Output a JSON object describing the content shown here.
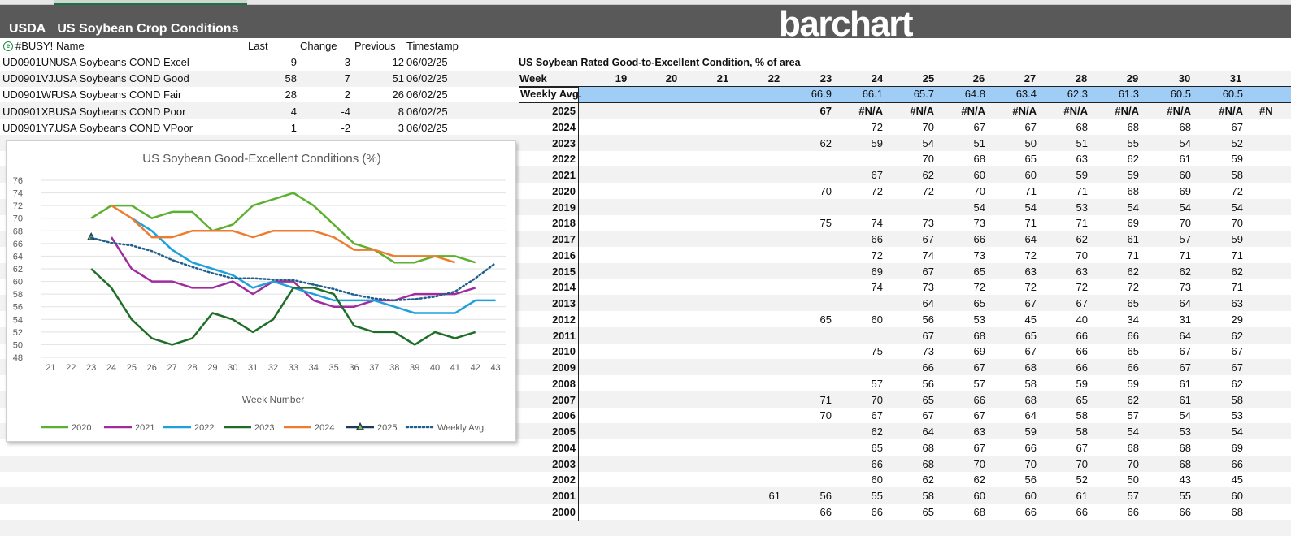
{
  "header": {
    "left_label": "USDA",
    "title": "US Soybean Crop Conditions",
    "logo_text": "barchart"
  },
  "quotes": {
    "status": "#BUSY!",
    "columns": [
      "Name",
      "Last",
      "Change",
      "Previous",
      "Timestamp"
    ],
    "rows": [
      {
        "symbol": "UD0901UN",
        "name": "USA Soybeans COND Excel",
        "last": "9",
        "change": "-3",
        "previous": "12",
        "timestamp": "06/02/25"
      },
      {
        "symbol": "UD0901VJ.",
        "name": "USA Soybeans COND Good",
        "last": "58",
        "change": "7",
        "previous": "51",
        "timestamp": "06/02/25"
      },
      {
        "symbol": "UD0901WF",
        "name": "USA Soybeans COND Fair",
        "last": "28",
        "change": "2",
        "previous": "26",
        "timestamp": "06/02/25"
      },
      {
        "symbol": "UD0901XB",
        "name": "USA Soybeans COND Poor",
        "last": "4",
        "change": "-4",
        "previous": "8",
        "timestamp": "06/02/25"
      },
      {
        "symbol": "UD0901Y7.",
        "name": "USA Soybeans COND VPoor",
        "last": "1",
        "change": "-2",
        "previous": "3",
        "timestamp": "06/02/25"
      }
    ]
  },
  "table": {
    "title": "US Soybean Rated Good-to-Excellent Condition, % of area",
    "week_label": "Week",
    "weeks": [
      "19",
      "20",
      "21",
      "22",
      "23",
      "24",
      "25",
      "26",
      "27",
      "28",
      "29",
      "30",
      "31"
    ],
    "avg_label": "Weekly Avg.",
    "avg": [
      "",
      "",
      "",
      "",
      "66.9",
      "66.1",
      "65.7",
      "64.8",
      "63.4",
      "62.3",
      "61.3",
      "60.5",
      "60.5"
    ],
    "overflow_text": "#N",
    "rows": [
      {
        "year": "2025",
        "values": [
          "",
          "",
          "",
          "",
          "67",
          "#N/A",
          "#N/A",
          "#N/A",
          "#N/A",
          "#N/A",
          "#N/A",
          "#N/A",
          "#N/A"
        ]
      },
      {
        "year": "2024",
        "values": [
          "",
          "",
          "",
          "",
          "",
          "72",
          "70",
          "67",
          "67",
          "68",
          "68",
          "68",
          "67"
        ]
      },
      {
        "year": "2023",
        "values": [
          "",
          "",
          "",
          "",
          "62",
          "59",
          "54",
          "51",
          "50",
          "51",
          "55",
          "54",
          "52"
        ]
      },
      {
        "year": "2022",
        "values": [
          "",
          "",
          "",
          "",
          "",
          "",
          "70",
          "68",
          "65",
          "63",
          "62",
          "61",
          "59"
        ]
      },
      {
        "year": "2021",
        "values": [
          "",
          "",
          "",
          "",
          "",
          "67",
          "62",
          "60",
          "60",
          "59",
          "59",
          "60",
          "58"
        ]
      },
      {
        "year": "2020",
        "values": [
          "",
          "",
          "",
          "",
          "70",
          "72",
          "72",
          "70",
          "71",
          "71",
          "68",
          "69",
          "72"
        ]
      },
      {
        "year": "2019",
        "values": [
          "",
          "",
          "",
          "",
          "",
          "",
          "",
          "54",
          "54",
          "53",
          "54",
          "54",
          "54"
        ]
      },
      {
        "year": "2018",
        "values": [
          "",
          "",
          "",
          "",
          "75",
          "74",
          "73",
          "73",
          "71",
          "71",
          "69",
          "70",
          "70"
        ]
      },
      {
        "year": "2017",
        "values": [
          "",
          "",
          "",
          "",
          "",
          "66",
          "67",
          "66",
          "64",
          "62",
          "61",
          "57",
          "59"
        ]
      },
      {
        "year": "2016",
        "values": [
          "",
          "",
          "",
          "",
          "",
          "72",
          "74",
          "73",
          "72",
          "70",
          "71",
          "71",
          "71"
        ]
      },
      {
        "year": "2015",
        "values": [
          "",
          "",
          "",
          "",
          "",
          "69",
          "67",
          "65",
          "63",
          "63",
          "62",
          "62",
          "62"
        ]
      },
      {
        "year": "2014",
        "values": [
          "",
          "",
          "",
          "",
          "",
          "74",
          "73",
          "72",
          "72",
          "72",
          "72",
          "73",
          "71"
        ]
      },
      {
        "year": "2013",
        "values": [
          "",
          "",
          "",
          "",
          "",
          "",
          "64",
          "65",
          "67",
          "67",
          "65",
          "64",
          "63"
        ]
      },
      {
        "year": "2012",
        "values": [
          "",
          "",
          "",
          "",
          "65",
          "60",
          "56",
          "53",
          "45",
          "40",
          "34",
          "31",
          "29"
        ]
      },
      {
        "year": "2011",
        "values": [
          "",
          "",
          "",
          "",
          "",
          "",
          "67",
          "68",
          "65",
          "66",
          "66",
          "64",
          "62"
        ]
      },
      {
        "year": "2010",
        "values": [
          "",
          "",
          "",
          "",
          "",
          "75",
          "73",
          "69",
          "67",
          "66",
          "65",
          "67",
          "67"
        ]
      },
      {
        "year": "2009",
        "values": [
          "",
          "",
          "",
          "",
          "",
          "",
          "66",
          "67",
          "68",
          "66",
          "66",
          "67",
          "67"
        ]
      },
      {
        "year": "2008",
        "values": [
          "",
          "",
          "",
          "",
          "",
          "57",
          "56",
          "57",
          "58",
          "59",
          "59",
          "61",
          "62"
        ]
      },
      {
        "year": "2007",
        "values": [
          "",
          "",
          "",
          "",
          "71",
          "70",
          "65",
          "66",
          "68",
          "65",
          "62",
          "61",
          "58"
        ]
      },
      {
        "year": "2006",
        "values": [
          "",
          "",
          "",
          "",
          "70",
          "67",
          "67",
          "67",
          "64",
          "58",
          "57",
          "54",
          "53"
        ]
      },
      {
        "year": "2005",
        "values": [
          "",
          "",
          "",
          "",
          "",
          "62",
          "64",
          "63",
          "59",
          "58",
          "54",
          "53",
          "54"
        ]
      },
      {
        "year": "2004",
        "values": [
          "",
          "",
          "",
          "",
          "",
          "65",
          "68",
          "67",
          "66",
          "67",
          "68",
          "68",
          "69"
        ]
      },
      {
        "year": "2003",
        "values": [
          "",
          "",
          "",
          "",
          "",
          "66",
          "68",
          "70",
          "70",
          "70",
          "70",
          "68",
          "66"
        ]
      },
      {
        "year": "2002",
        "values": [
          "",
          "",
          "",
          "",
          "",
          "60",
          "62",
          "62",
          "56",
          "52",
          "50",
          "43",
          "45"
        ]
      },
      {
        "year": "2001",
        "values": [
          "",
          "",
          "",
          "61",
          "56",
          "55",
          "58",
          "60",
          "60",
          "61",
          "57",
          "55",
          "60"
        ]
      },
      {
        "year": "2000",
        "values": [
          "",
          "",
          "",
          "",
          "66",
          "66",
          "65",
          "68",
          "66",
          "66",
          "66",
          "66",
          "68"
        ]
      }
    ]
  },
  "chart_data": {
    "type": "line",
    "title": "US Soybean Good-Excellent Conditions (%)",
    "xlabel": "Week Number",
    "ylabel": "",
    "x_ticks": [
      "21",
      "22",
      "23",
      "24",
      "25",
      "26",
      "27",
      "28",
      "29",
      "30",
      "31",
      "32",
      "33",
      "34",
      "35",
      "36",
      "37",
      "38",
      "39",
      "40",
      "41",
      "42",
      "43"
    ],
    "xlim": [
      21,
      43
    ],
    "ylim": [
      48,
      76
    ],
    "y_ticks": [
      "48",
      "50",
      "52",
      "54",
      "56",
      "58",
      "60",
      "62",
      "64",
      "66",
      "68",
      "70",
      "72",
      "74",
      "76"
    ],
    "legend_position": "bottom",
    "grid": true,
    "series": [
      {
        "name": "2020",
        "color": "#5cb030",
        "style": "solid",
        "x": [
          23,
          24,
          25,
          26,
          27,
          28,
          29,
          30,
          31,
          32,
          33,
          34,
          35,
          36,
          37,
          38,
          39,
          40,
          41,
          42
        ],
        "y": [
          70,
          72,
          72,
          70,
          71,
          71,
          68,
          69,
          72,
          73,
          74,
          72,
          69,
          66,
          65,
          63,
          63,
          64,
          64,
          63
        ]
      },
      {
        "name": "2021",
        "color": "#a02aa0",
        "style": "solid",
        "x": [
          24,
          25,
          26,
          27,
          28,
          29,
          30,
          31,
          32,
          33,
          34,
          35,
          36,
          37,
          38,
          39,
          40,
          41,
          42
        ],
        "y": [
          67,
          62,
          60,
          60,
          59,
          59,
          60,
          58,
          60,
          60,
          57,
          56,
          56,
          57,
          57,
          58,
          58,
          58,
          59
        ]
      },
      {
        "name": "2022",
        "color": "#1ea0dc",
        "style": "solid",
        "x": [
          25,
          26,
          27,
          28,
          29,
          30,
          31,
          32,
          33,
          34,
          35,
          36,
          37,
          38,
          39,
          40,
          41,
          42,
          43
        ],
        "y": [
          70,
          68,
          65,
          63,
          62,
          61,
          59,
          60,
          59,
          58,
          57,
          57,
          57,
          56,
          55,
          55,
          55,
          57,
          57
        ]
      },
      {
        "name": "2023",
        "color": "#1e6e28",
        "style": "solid",
        "x": [
          23,
          24,
          25,
          26,
          27,
          28,
          29,
          30,
          31,
          32,
          33,
          34,
          35,
          36,
          37,
          38,
          39,
          40,
          41,
          42
        ],
        "y": [
          62,
          59,
          54,
          51,
          50,
          51,
          55,
          54,
          52,
          54,
          59,
          59,
          58,
          53,
          52,
          52,
          50,
          52,
          51,
          52
        ]
      },
      {
        "name": "2024",
        "color": "#ee7c30",
        "style": "solid",
        "x": [
          24,
          25,
          26,
          27,
          28,
          29,
          30,
          31,
          32,
          33,
          34,
          35,
          36,
          37,
          38,
          39,
          40,
          41
        ],
        "y": [
          72,
          70,
          67,
          67,
          68,
          68,
          68,
          67,
          68,
          68,
          68,
          67,
          65,
          65,
          64,
          64,
          64,
          63
        ]
      },
      {
        "name": "2025",
        "color": "#1f3a5a",
        "style": "marker",
        "x": [
          23
        ],
        "y": [
          67
        ]
      },
      {
        "name": "Weekly Avg.",
        "color": "#1f5f8b",
        "style": "dotted",
        "x": [
          23,
          24,
          25,
          26,
          27,
          28,
          29,
          30,
          31,
          32,
          33,
          34,
          35,
          36,
          37,
          38,
          39,
          40,
          41,
          42,
          43
        ],
        "y": [
          66.9,
          66.1,
          65.7,
          64.8,
          63.4,
          62.3,
          61.3,
          60.5,
          60.5,
          60.3,
          60.2,
          59.5,
          58.8,
          57.9,
          57.3,
          57.0,
          57.2,
          57.6,
          58.4,
          60.5,
          62.9
        ]
      }
    ]
  }
}
